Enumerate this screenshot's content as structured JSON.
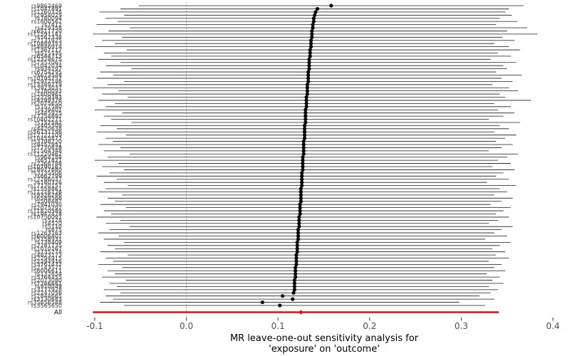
{
  "chart_data": {
    "type": "scatter",
    "subtype": "forest-leave-one-out",
    "title": "",
    "xlabel_line1": "MR leave-one-out sensitivity analysis for",
    "xlabel_line2": "'exposure' on 'outcome'",
    "xlim": [
      -0.1,
      0.4
    ],
    "zero_line": 0.0,
    "grid": "off",
    "x_ticks": [
      -0.1,
      0.0,
      0.1,
      0.2,
      0.3,
      0.4
    ],
    "x_tick_labels": [
      "-0.1",
      "0.0",
      "0.1",
      "0.2",
      "0.3",
      "0.4"
    ],
    "colors": {
      "point": "#000000",
      "ci_line": "#1a1a1a",
      "all_row": "#ff0000",
      "zero_line": "#b3b3b3",
      "axis_text": "#4d4d4d"
    },
    "rows": [
      [
        "rs9862469",
        0.158,
        -0.052,
        0.368
      ],
      [
        "rs1047891",
        0.143,
        -0.072,
        0.352
      ],
      [
        "rs1260326",
        0.141,
        -0.095,
        0.348
      ],
      [
        "rs2954029",
        0.14,
        -0.068,
        0.355
      ],
      [
        "rs780094",
        0.139,
        -0.088,
        0.342
      ],
      [
        "rs1800562",
        0.139,
        -0.075,
        0.361
      ],
      [
        "rs7412",
        0.138,
        -0.098,
        0.338
      ],
      [
        "rs429358",
        0.138,
        -0.062,
        0.372
      ],
      [
        "rs6511720",
        0.137,
        -0.085,
        0.35
      ],
      [
        "rs11591147",
        0.137,
        -0.102,
        0.383
      ],
      [
        "rs562338",
        0.137,
        -0.07,
        0.345
      ],
      [
        "rs2131925",
        0.136,
        -0.092,
        0.358
      ],
      [
        "rs10889353",
        0.136,
        -0.078,
        0.336
      ],
      [
        "rs4846914",
        0.136,
        -0.1,
        0.352
      ],
      [
        "rs1367117",
        0.135,
        -0.065,
        0.364
      ],
      [
        "rs515135",
        0.135,
        -0.09,
        0.34
      ],
      [
        "rs6544713",
        0.135,
        -0.082,
        0.354
      ],
      [
        "rs12328675",
        0.134,
        -0.096,
        0.332
      ],
      [
        "rs7557067",
        0.134,
        -0.072,
        0.36
      ],
      [
        "rs1042034",
        0.134,
        -0.088,
        0.346
      ],
      [
        "rs934197",
        0.134,
        -0.06,
        0.35
      ],
      [
        "rs6754295",
        0.133,
        -0.094,
        0.338
      ],
      [
        "rs673548",
        0.133,
        -0.08,
        0.366
      ],
      [
        "rs10195252",
        0.133,
        -0.098,
        0.344
      ],
      [
        "rs2972146",
        0.133,
        -0.068,
        0.356
      ],
      [
        "rs13389219",
        0.132,
        -0.086,
        0.334
      ],
      [
        "rs3923037",
        0.132,
        -0.102,
        0.352
      ],
      [
        "rs780093",
        0.132,
        -0.074,
        0.362
      ],
      [
        "rs1800961",
        0.132,
        -0.092,
        0.342
      ],
      [
        "rs2229383",
        0.131,
        -0.064,
        0.348
      ],
      [
        "rs4299376",
        0.131,
        -0.096,
        0.376
      ],
      [
        "rs2075650",
        0.131,
        -0.078,
        0.336
      ],
      [
        "rs157580",
        0.131,
        -0.088,
        0.354
      ],
      [
        "rs439401",
        0.13,
        -0.1,
        0.34
      ],
      [
        "rs445925",
        0.13,
        -0.07,
        0.358
      ],
      [
        "rs7254892",
        0.13,
        -0.09,
        0.346
      ],
      [
        "rs10402271",
        0.13,
        -0.082,
        0.33
      ],
      [
        "rs157582",
        0.13,
        -0.06,
        0.364
      ],
      [
        "rs405509",
        0.129,
        -0.094,
        0.342
      ],
      [
        "rs4420638",
        0.129,
        -0.076,
        0.352
      ],
      [
        "rs56131196",
        0.129,
        -0.098,
        0.336
      ],
      [
        "rs12721109",
        0.129,
        -0.066,
        0.36
      ],
      [
        "rs10455872",
        0.129,
        -0.088,
        0.348
      ],
      [
        "rs3798220",
        0.128,
        -0.08,
        0.338
      ],
      [
        "rs9457951",
        0.128,
        -0.096,
        0.356
      ],
      [
        "rs7770628",
        0.128,
        -0.072,
        0.344
      ],
      [
        "rs1564348",
        0.128,
        -0.09,
        0.33
      ],
      [
        "rs11220462",
        0.128,
        -0.062,
        0.362
      ],
      [
        "rs964184",
        0.127,
        -0.086,
        0.35
      ],
      [
        "rs651821",
        0.127,
        -0.1,
        0.34
      ],
      [
        "rs2266788",
        0.127,
        -0.074,
        0.354
      ],
      [
        "rs10790162",
        0.127,
        -0.092,
        0.334
      ],
      [
        "rs28927680",
        0.127,
        -0.068,
        0.358
      ],
      [
        "rs3135506",
        0.126,
        -0.084,
        0.346
      ],
      [
        "rs662799",
        0.126,
        -0.098,
        0.338
      ],
      [
        "rs12286037",
        0.126,
        -0.076,
        0.352
      ],
      [
        "rs180326",
        0.126,
        -0.09,
        0.328
      ],
      [
        "rs17120157",
        0.126,
        -0.064,
        0.36
      ],
      [
        "rs1558861",
        0.125,
        -0.088,
        0.342
      ],
      [
        "rs11216126",
        0.125,
        -0.096,
        0.35
      ],
      [
        "rs9326246",
        0.125,
        -0.07,
        0.336
      ],
      [
        "rs6589566",
        0.125,
        -0.086,
        0.356
      ],
      [
        "rs508487",
        0.125,
        -0.078,
        0.344
      ],
      [
        "rs7941030",
        0.124,
        -0.094,
        0.332
      ],
      [
        "rs2075292",
        0.124,
        -0.066,
        0.354
      ],
      [
        "rs11820589",
        0.124,
        -0.09,
        0.346
      ],
      [
        "rs1942478",
        0.124,
        -0.082,
        0.338
      ],
      [
        "rs10750097",
        0.123,
        -0.098,
        0.352
      ],
      [
        "rs5128",
        0.123,
        -0.072,
        0.34
      ],
      [
        "rs4520",
        0.123,
        -0.088,
        0.33
      ],
      [
        "rs5110",
        0.123,
        -0.062,
        0.356
      ],
      [
        "rs675",
        0.122,
        -0.084,
        0.344
      ],
      [
        "rs1263163",
        0.122,
        -0.096,
        0.336
      ],
      [
        "rs6006401",
        0.122,
        -0.074,
        0.35
      ],
      [
        "rs5756931",
        0.122,
        -0.09,
        0.326
      ],
      [
        "rs738409",
        0.121,
        -0.068,
        0.354
      ],
      [
        "rs2281135",
        0.121,
        -0.086,
        0.342
      ],
      [
        "rs1010167",
        0.121,
        -0.078,
        0.334
      ],
      [
        "rs735274",
        0.121,
        -0.094,
        0.348
      ],
      [
        "rs4823173",
        0.12,
        -0.064,
        0.338
      ],
      [
        "rs2294915",
        0.12,
        -0.088,
        0.352
      ],
      [
        "rs2294916",
        0.12,
        -0.08,
        0.33
      ],
      [
        "rs3761472",
        0.12,
        -0.096,
        0.344
      ],
      [
        "rs2143571",
        0.119,
        -0.07,
        0.336
      ],
      [
        "rs6006611",
        0.119,
        -0.086,
        0.348
      ],
      [
        "rs132654",
        0.119,
        -0.078,
        0.328
      ],
      [
        "rs5764455",
        0.119,
        -0.092,
        0.342
      ],
      [
        "rs2073080",
        0.118,
        -0.066,
        0.334
      ],
      [
        "rs7286661",
        0.118,
        -0.084,
        0.346
      ],
      [
        "rs910049",
        0.118,
        -0.076,
        0.33
      ],
      [
        "rs3177928",
        0.118,
        -0.09,
        0.34
      ],
      [
        "rs2247056",
        0.117,
        -0.072,
        0.332
      ],
      [
        "rs2844665",
        0.105,
        -0.088,
        0.32
      ],
      [
        "rs3130683",
        0.116,
        -0.08,
        0.336
      ],
      [
        "rs35656548",
        0.083,
        -0.094,
        0.298
      ],
      [
        "rs3565650",
        0.102,
        -0.068,
        0.326
      ]
    ],
    "all_row": {
      "label": "All",
      "est": 0.125,
      "lo": -0.102,
      "hi": 0.341
    }
  }
}
